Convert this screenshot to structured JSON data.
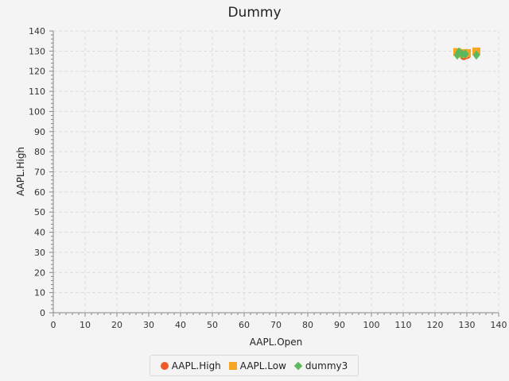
{
  "chart_data": {
    "type": "scatter",
    "title": "Dummy",
    "xlabel": "AAPL.Open",
    "ylabel": "AAPL.High",
    "xlim": [
      0,
      140
    ],
    "ylim": [
      0,
      140
    ],
    "xticks": [
      0,
      10,
      20,
      30,
      40,
      50,
      60,
      70,
      80,
      90,
      100,
      110,
      120,
      130,
      140
    ],
    "yticks": [
      0,
      10,
      20,
      30,
      40,
      50,
      60,
      70,
      80,
      90,
      100,
      110,
      120,
      130,
      140
    ],
    "grid": true,
    "legend_position": "bottom",
    "series": [
      {
        "name": "AAPL.High",
        "marker": "circle",
        "color": "#f05a28",
        "points": [
          [
            127.5,
            129.0
          ],
          [
            128.5,
            128.5
          ],
          [
            129.0,
            127.5
          ],
          [
            130.0,
            128.0
          ],
          [
            133.0,
            129.5
          ]
        ]
      },
      {
        "name": "AAPL.Low",
        "marker": "square",
        "color": "#f5a623",
        "points": [
          [
            127.0,
            129.5
          ],
          [
            128.0,
            129.0
          ],
          [
            129.0,
            128.5
          ],
          [
            130.0,
            129.0
          ],
          [
            133.0,
            129.8
          ]
        ]
      },
      {
        "name": "dummy3",
        "marker": "diamond",
        "color": "#5cb85c",
        "points": [
          [
            127.0,
            128.0
          ],
          [
            127.5,
            129.5
          ],
          [
            128.5,
            128.5
          ],
          [
            129.5,
            128.5
          ],
          [
            133.0,
            128.0
          ]
        ]
      }
    ]
  }
}
